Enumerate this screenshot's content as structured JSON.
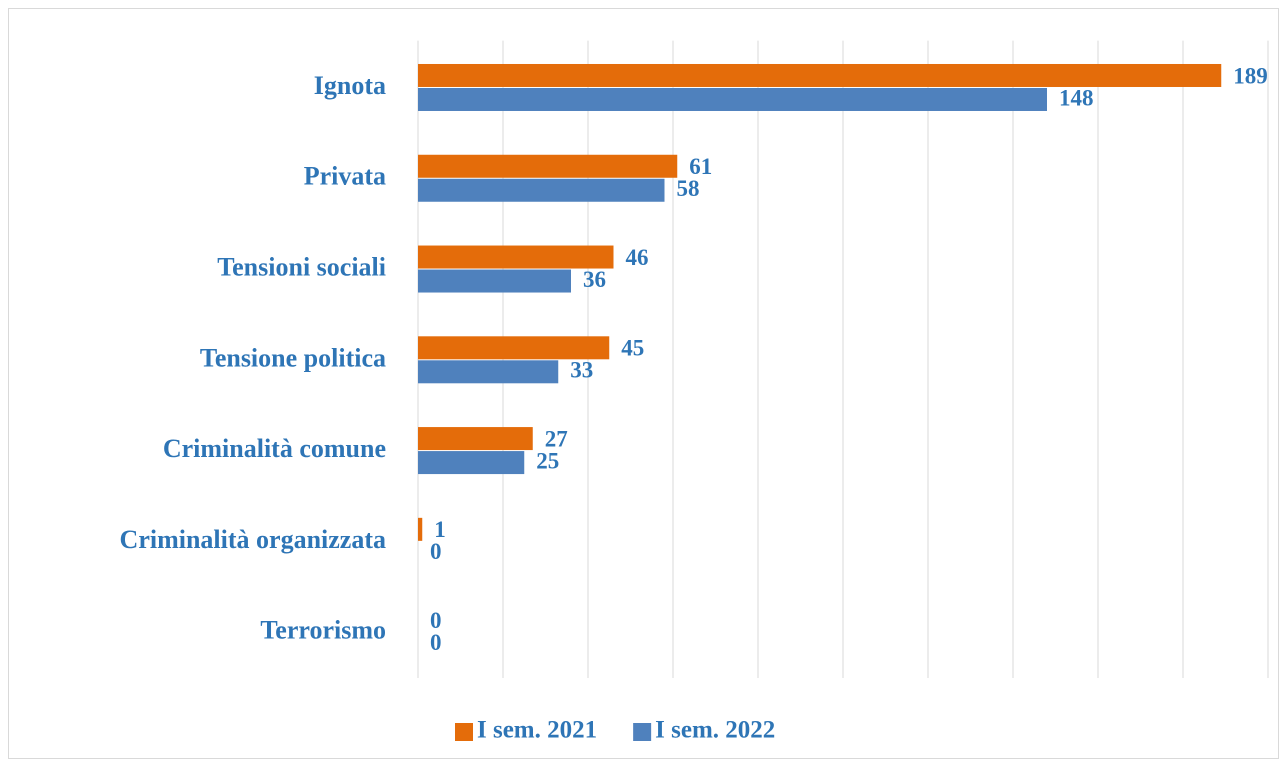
{
  "chart_data": {
    "type": "hbar",
    "categories": [
      "Ignota",
      "Privata",
      "Tensioni sociali",
      "Tensione politica",
      "Criminalità comune",
      "Criminalità organizzata",
      "Terrorismo"
    ],
    "series": [
      {
        "name": "I sem. 2021",
        "color": "#e46c0a",
        "values": [
          189,
          61,
          46,
          45,
          27,
          1,
          0
        ]
      },
      {
        "name": "I sem. 2022",
        "color": "#4f81bd",
        "values": [
          148,
          58,
          36,
          33,
          25,
          0,
          0
        ]
      }
    ],
    "xlim": [
      0,
      200
    ],
    "xticks": [
      0,
      20,
      40,
      60,
      80,
      100,
      120,
      140,
      160,
      180,
      200
    ],
    "grid": true,
    "legend": "bottom"
  }
}
